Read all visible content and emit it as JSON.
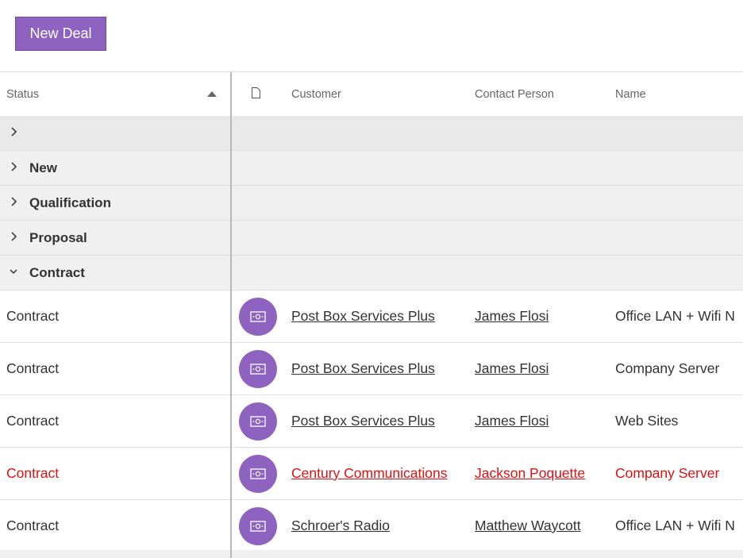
{
  "toolbar": {
    "new_deal_label": "New Deal"
  },
  "grid": {
    "columns": {
      "status": "Status",
      "customer": "Customer",
      "contact": "Contact Person",
      "name": "Name"
    },
    "groups": [
      {
        "label": "",
        "expanded": false
      },
      {
        "label": "New",
        "expanded": false
      },
      {
        "label": "Qualification",
        "expanded": false
      },
      {
        "label": "Proposal",
        "expanded": false
      },
      {
        "label": "Contract",
        "expanded": true
      }
    ],
    "rows": [
      {
        "status": "Contract",
        "customer": "Post Box Services Plus",
        "contact": "James Flosi",
        "name": "Office LAN + Wifi N"
      },
      {
        "status": "Contract",
        "customer": "Post Box Services Plus",
        "contact": "James Flosi",
        "name": "Company Server"
      },
      {
        "status": "Contract",
        "customer": "Post Box Services Plus",
        "contact": "James Flosi",
        "name": "Web Sites"
      },
      {
        "status": "Contract",
        "customer": "Century Communications",
        "contact": "Jackson Poquette",
        "name": "Company Server",
        "alert": true
      },
      {
        "status": "Contract",
        "customer": "Schroer's Radio",
        "contact": "Matthew Waycott",
        "name": "Office LAN + Wifi N"
      }
    ]
  },
  "colors": {
    "accent": "#8e63bf",
    "alert": "#e01010"
  },
  "icons": {
    "row": "money-bill-icon",
    "header": "document-icon",
    "sort": "sort-ascending-icon"
  }
}
